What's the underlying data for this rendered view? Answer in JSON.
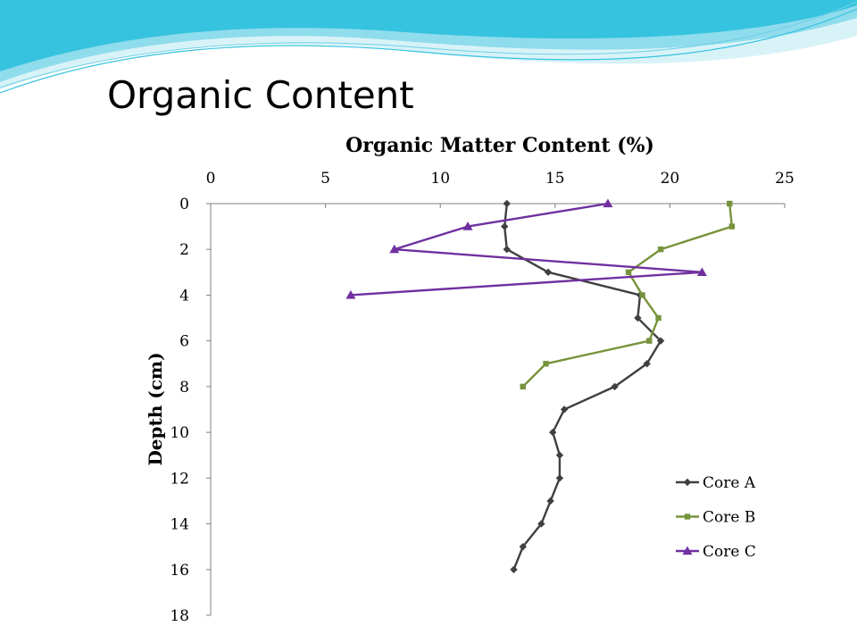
{
  "slide": {
    "title": "Organic Content"
  },
  "theme": {
    "wave_colors": [
      "#36c3e0",
      "#8fdcec",
      "#d8f3f8"
    ]
  },
  "chart_data": {
    "type": "line",
    "title": "Organic Matter Content (%)",
    "xlabel": "",
    "ylabel": "Depth (cm)",
    "xlim": [
      0,
      25
    ],
    "ylim": [
      0,
      18
    ],
    "x_ticks": [
      0,
      5,
      10,
      15,
      20,
      25
    ],
    "y_ticks": [
      0,
      2,
      4,
      6,
      8,
      10,
      12,
      14,
      16,
      18
    ],
    "y_inverted": true,
    "x_axis_position": "top",
    "grid": false,
    "legend_position": "bottom-right",
    "series": [
      {
        "name": "Core A",
        "color": "#404040",
        "marker": "diamond",
        "points": [
          {
            "x": 12.9,
            "y": 0
          },
          {
            "x": 12.8,
            "y": 1
          },
          {
            "x": 12.9,
            "y": 2
          },
          {
            "x": 14.7,
            "y": 3
          },
          {
            "x": 18.7,
            "y": 4
          },
          {
            "x": 18.6,
            "y": 5
          },
          {
            "x": 19.6,
            "y": 6
          },
          {
            "x": 19.0,
            "y": 7
          },
          {
            "x": 17.6,
            "y": 8
          },
          {
            "x": 15.4,
            "y": 9
          },
          {
            "x": 14.9,
            "y": 10
          },
          {
            "x": 15.2,
            "y": 11
          },
          {
            "x": 15.2,
            "y": 12
          },
          {
            "x": 14.8,
            "y": 13
          },
          {
            "x": 14.4,
            "y": 14
          },
          {
            "x": 13.6,
            "y": 15
          },
          {
            "x": 13.2,
            "y": 16
          }
        ]
      },
      {
        "name": "Core B",
        "color": "#77933c",
        "marker": "square",
        "points": [
          {
            "x": 22.6,
            "y": 0
          },
          {
            "x": 22.7,
            "y": 1
          },
          {
            "x": 19.6,
            "y": 2
          },
          {
            "x": 18.2,
            "y": 3
          },
          {
            "x": 18.8,
            "y": 4
          },
          {
            "x": 19.5,
            "y": 5
          },
          {
            "x": 19.1,
            "y": 6
          },
          {
            "x": 14.6,
            "y": 7
          },
          {
            "x": 13.6,
            "y": 8
          }
        ]
      },
      {
        "name": "Core C",
        "color": "#7030a0",
        "marker": "triangle",
        "points": [
          {
            "x": 17.3,
            "y": 0
          },
          {
            "x": 11.2,
            "y": 1
          },
          {
            "x": 8.0,
            "y": 2
          },
          {
            "x": 21.4,
            "y": 3
          },
          {
            "x": 6.1,
            "y": 4
          }
        ]
      }
    ]
  }
}
